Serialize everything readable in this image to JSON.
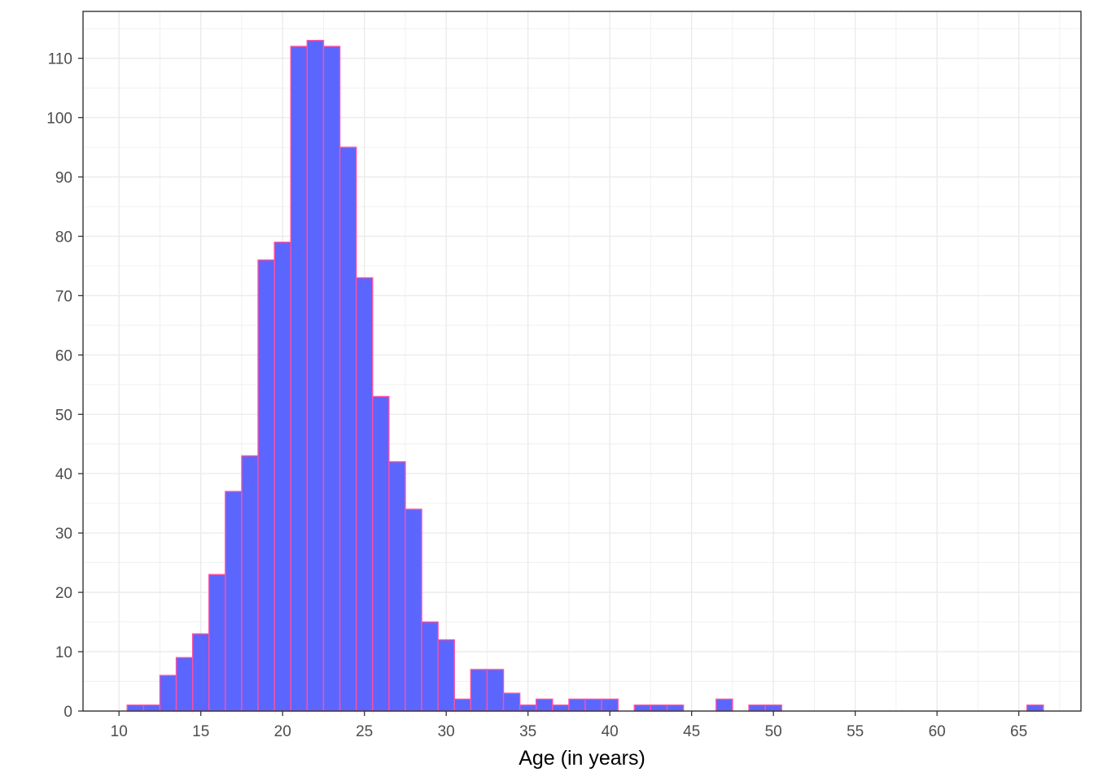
{
  "chart_data": {
    "type": "bar",
    "subtype": "histogram",
    "title": "",
    "xlabel": "Age (in years)",
    "ylabel": "",
    "xlim": [
      7.8,
      68.8
    ],
    "ylim": [
      0,
      117.9
    ],
    "bin_width": 1,
    "x_ticks": [
      10,
      15,
      20,
      25,
      30,
      35,
      40,
      45,
      50,
      55,
      60,
      65
    ],
    "y_ticks": [
      0,
      10,
      20,
      30,
      40,
      50,
      60,
      70,
      80,
      90,
      100,
      110
    ],
    "grid": true,
    "legend": "none",
    "colors": {
      "fill": "#5b66fe",
      "outline": "#ff4fa3",
      "grid": "#ebebeb",
      "panel_border": "#333333",
      "tick_text": "#4d4d4d"
    },
    "bins": [
      {
        "x": 11,
        "count": 1
      },
      {
        "x": 12,
        "count": 1
      },
      {
        "x": 13,
        "count": 6
      },
      {
        "x": 14,
        "count": 9
      },
      {
        "x": 15,
        "count": 13
      },
      {
        "x": 16,
        "count": 23
      },
      {
        "x": 17,
        "count": 37
      },
      {
        "x": 18,
        "count": 43
      },
      {
        "x": 19,
        "count": 76
      },
      {
        "x": 20,
        "count": 79
      },
      {
        "x": 21,
        "count": 112
      },
      {
        "x": 22,
        "count": 113
      },
      {
        "x": 23,
        "count": 112
      },
      {
        "x": 24,
        "count": 95
      },
      {
        "x": 25,
        "count": 73
      },
      {
        "x": 26,
        "count": 53
      },
      {
        "x": 27,
        "count": 42
      },
      {
        "x": 28,
        "count": 34
      },
      {
        "x": 29,
        "count": 15
      },
      {
        "x": 30,
        "count": 12
      },
      {
        "x": 31,
        "count": 2
      },
      {
        "x": 32,
        "count": 7
      },
      {
        "x": 33,
        "count": 7
      },
      {
        "x": 34,
        "count": 3
      },
      {
        "x": 35,
        "count": 1
      },
      {
        "x": 36,
        "count": 2
      },
      {
        "x": 37,
        "count": 1
      },
      {
        "x": 38,
        "count": 2
      },
      {
        "x": 39,
        "count": 2
      },
      {
        "x": 40,
        "count": 2
      },
      {
        "x": 42,
        "count": 1
      },
      {
        "x": 43,
        "count": 1
      },
      {
        "x": 44,
        "count": 1
      },
      {
        "x": 47,
        "count": 2
      },
      {
        "x": 49,
        "count": 1
      },
      {
        "x": 50,
        "count": 1
      },
      {
        "x": 66,
        "count": 1
      }
    ]
  }
}
